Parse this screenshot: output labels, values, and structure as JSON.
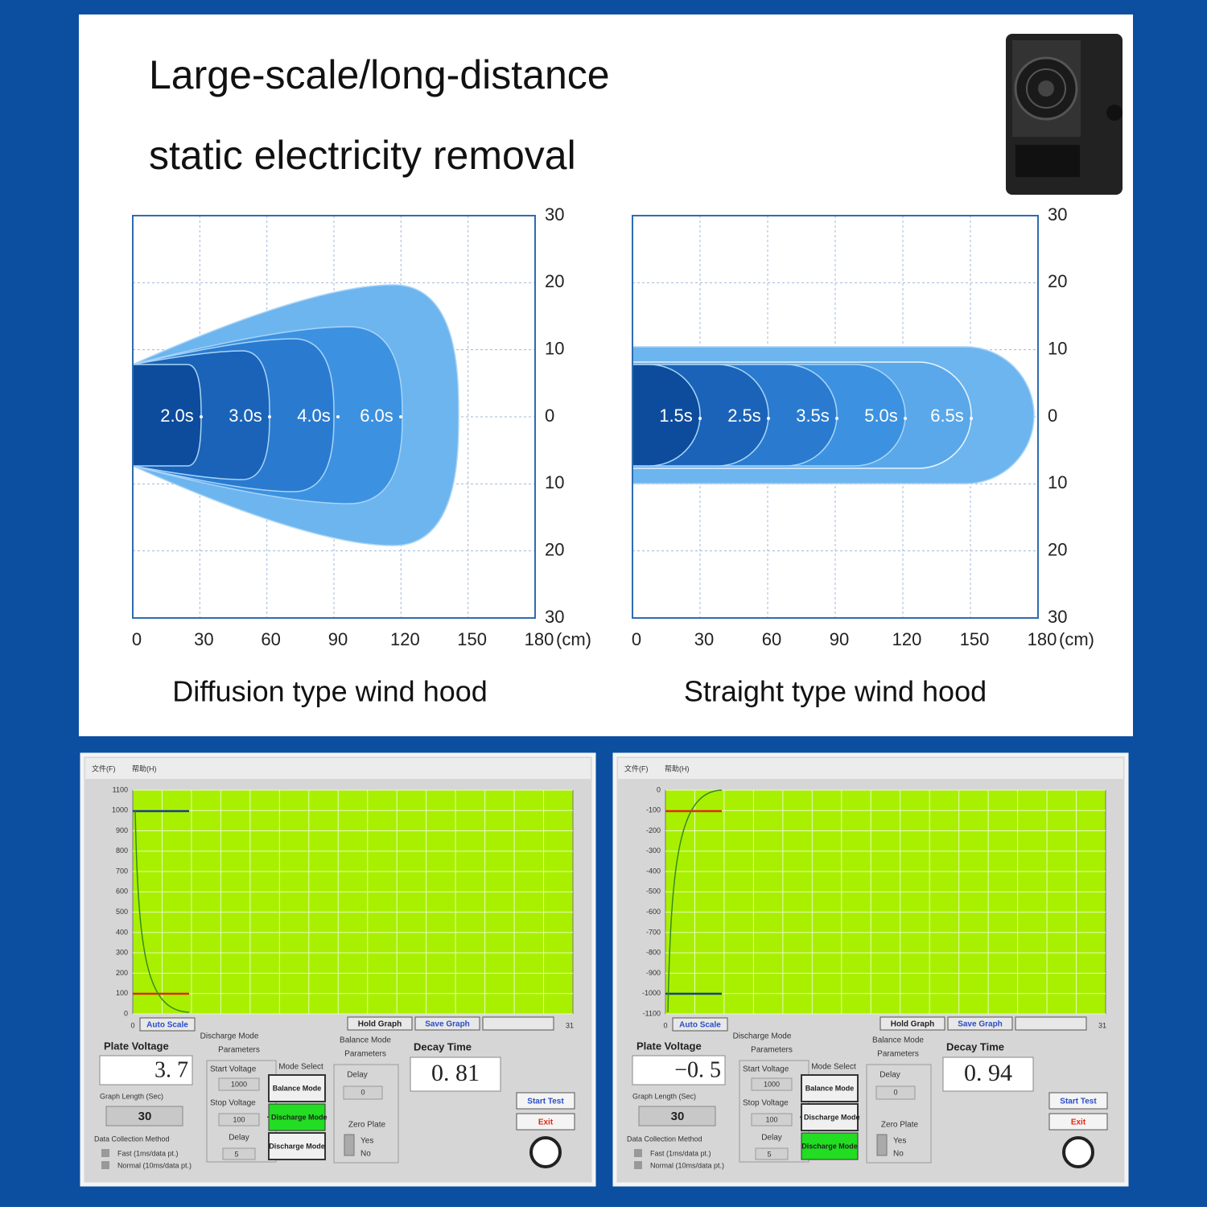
{
  "header": {
    "title_lines": [
      "Large-scale/long-distance",
      "static electricity removal"
    ]
  },
  "diagrams": [
    {
      "caption": "Diffusion type wind hood",
      "x_ticks": [
        0,
        30,
        60,
        90,
        120,
        150,
        180
      ],
      "x_unit": "(cm)",
      "y_ticks": [
        30,
        20,
        10,
        0,
        10,
        20,
        30
      ],
      "zones": [
        "2.0s",
        "3.0s",
        "4.0s",
        "6.0s"
      ]
    },
    {
      "caption": "Straight type wind hood",
      "x_ticks": [
        0,
        30,
        60,
        90,
        120,
        150,
        180
      ],
      "x_unit": "(cm)",
      "y_ticks": [
        30,
        20,
        10,
        0,
        10,
        20,
        30
      ],
      "zones": [
        "1.5s",
        "2.5s",
        "3.5s",
        "5.0s",
        "6.5s"
      ]
    }
  ],
  "panels": [
    {
      "menu": [
        "文件(F)",
        "帮助(H)"
      ],
      "y_ticks": [
        1100,
        1000,
        900,
        800,
        700,
        600,
        500,
        400,
        300,
        200,
        100,
        0
      ],
      "x_ticks": [
        0,
        31
      ],
      "auto_scale": "Auto Scale",
      "hold_graph": "Hold Graph",
      "save_graph": "Save Graph",
      "plate_voltage_label": "Plate Voltage",
      "plate_voltage": "3. 7",
      "graph_length_label": "Graph Length (Sec)",
      "graph_length": "30",
      "data_method_label": "Data Collection Method",
      "methods": [
        "Fast (1ms/data pt.)",
        "Normal (10ms/data pt.)"
      ],
      "discharge_params": [
        "Discharge Mode",
        "Parameters"
      ],
      "start_voltage": "Start Voltage",
      "start_value": "1000",
      "stop_voltage": "Stop Voltage",
      "stop_value": "100",
      "delay": "Delay",
      "delay_value": "5",
      "mode_select": "Mode Select",
      "modes": [
        "Balance Mode",
        "· Discharge Mode",
        "Discharge Mode"
      ],
      "active_mode": 1,
      "balance_params": [
        "Balance Mode",
        "Parameters"
      ],
      "balance_delay": "Delay",
      "balance_delay_value": "0",
      "zero_plate": "Zero Plate",
      "zero_options": [
        "Yes",
        "No"
      ],
      "decay_label": "Decay Time",
      "decay": "0. 81",
      "start_test": "Start Test",
      "exit": "Exit"
    },
    {
      "menu": [
        "文件(F)",
        "帮助(H)"
      ],
      "y_ticks": [
        0,
        -100,
        -200,
        -300,
        -400,
        -500,
        -600,
        -700,
        -800,
        -900,
        -1000,
        -1100
      ],
      "x_ticks": [
        0,
        31
      ],
      "auto_scale": "Auto Scale",
      "hold_graph": "Hold Graph",
      "save_graph": "Save Graph",
      "plate_voltage_label": "Plate Voltage",
      "plate_voltage": "−0. 5",
      "graph_length_label": "Graph Length (Sec)",
      "graph_length": "30",
      "data_method_label": "Data Collection Method",
      "methods": [
        "Fast (1ms/data pt.)",
        "Normal (10ms/data pt.)"
      ],
      "discharge_params": [
        "Discharge Mode",
        "Parameters"
      ],
      "start_voltage": "Start Voltage",
      "start_value": "1000",
      "stop_voltage": "Stop Voltage",
      "stop_value": "100",
      "delay": "Delay",
      "delay_value": "5",
      "mode_select": "Mode Select",
      "modes": [
        "Balance Mode",
        "· Discharge Mode",
        "Discharge Mode"
      ],
      "active_mode": 2,
      "balance_params": [
        "Balance Mode",
        "Parameters"
      ],
      "balance_delay": "Delay",
      "balance_delay_value": "0",
      "zero_plate": "Zero Plate",
      "zero_options": [
        "Yes",
        "No"
      ],
      "decay_label": "Decay Time",
      "decay": "0. 94",
      "start_test": "Start Test",
      "exit": "Exit"
    }
  ]
}
